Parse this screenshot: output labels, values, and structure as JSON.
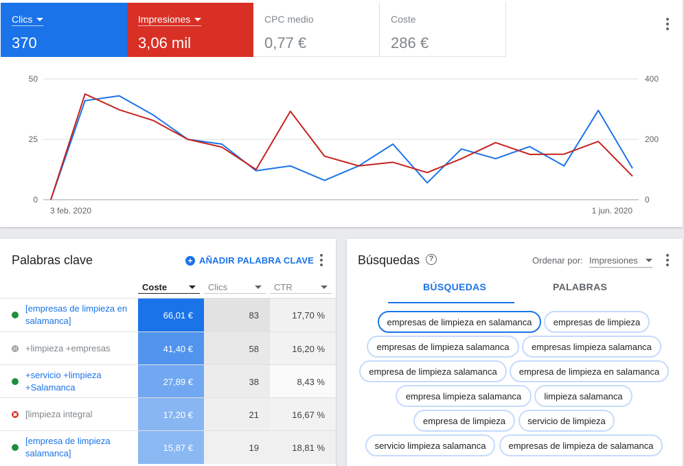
{
  "metrics": [
    {
      "label": "Clics",
      "value": "370",
      "color": "#1a73e8",
      "selected": true
    },
    {
      "label": "Impresiones",
      "value": "3,06 mil",
      "color": "#d93025",
      "selected": true
    },
    {
      "label": "CPC medio",
      "value": "0,77 €",
      "selected": false
    },
    {
      "label": "Coste",
      "value": "286 €",
      "selected": false
    }
  ],
  "chart_data": {
    "type": "line",
    "x_labels": [
      "3 feb. 2020",
      "1 jun. 2020"
    ],
    "y_left": {
      "ticks": [
        "50",
        "25",
        "0"
      ],
      "range": [
        0,
        50
      ]
    },
    "y_right": {
      "ticks": [
        "400",
        "200",
        "0"
      ],
      "range": [
        0,
        400
      ]
    },
    "grid": true,
    "series": [
      {
        "name": "Clics",
        "color": "#1a73e8",
        "axis": "left",
        "values": [
          0,
          41,
          43,
          35,
          25,
          23,
          12,
          14,
          8,
          14,
          23,
          7,
          21,
          17,
          22,
          14,
          37,
          13
        ]
      },
      {
        "name": "Impresiones",
        "color": "#c5221f",
        "axis": "right",
        "values": [
          0,
          350,
          298,
          262,
          200,
          174,
          100,
          293,
          144,
          112,
          124,
          90,
          136,
          189,
          150,
          151,
          193,
          78
        ]
      }
    ]
  },
  "keywords": {
    "title": "Palabras clave",
    "add_label": "AÑADIR PALABRA CLAVE",
    "columns": [
      "Coste",
      "Clics",
      "CTR"
    ],
    "rows": [
      {
        "status": "ok",
        "keyword": "[empresas de limpieza en salamanca]",
        "cost": "66,01 €",
        "cost_share": 1.0,
        "clicks": "83",
        "ctr": "17,70 %"
      },
      {
        "status": "paused",
        "keyword": "+limpieza +empresas",
        "cost": "41,40 €",
        "cost_share": 0.63,
        "clicks": "58",
        "ctr": "16,20 %"
      },
      {
        "status": "ok",
        "keyword": "+servicio +limpieza +Salamanca",
        "cost": "27,89 €",
        "cost_share": 0.42,
        "clicks": "38",
        "ctr": "8,43 %"
      },
      {
        "status": "removed",
        "keyword": "[limpieza integral",
        "cost": "17,20 €",
        "cost_share": 0.26,
        "clicks": "21",
        "ctr": "16,67 %"
      },
      {
        "status": "ok",
        "keyword": "[empresa de limpieza salamanca]",
        "cost": "15,87 €",
        "cost_share": 0.24,
        "clicks": "19",
        "ctr": "18,81 %"
      }
    ]
  },
  "searches": {
    "title": "Búsquedas",
    "help_icon": "help-icon",
    "order_label": "Ordenar por:",
    "order_value": "Impresiones",
    "tabs": [
      "BÚSQUEDAS",
      "PALABRAS"
    ],
    "chips": [
      "empresas de limpieza en salamanca",
      "empresas de limpieza",
      "empresas de limpieza salamanca",
      "empresas limpieza salamanca",
      "empresa de limpieza salamanca",
      "empresa de limpieza en salamanca",
      "empresa limpieza salamanca",
      "limpieza salamanca",
      "empresa de limpieza",
      "servicio de limpieza",
      "servicio limpieza salamanca",
      "empresas de limpieza de salamanca"
    ]
  }
}
